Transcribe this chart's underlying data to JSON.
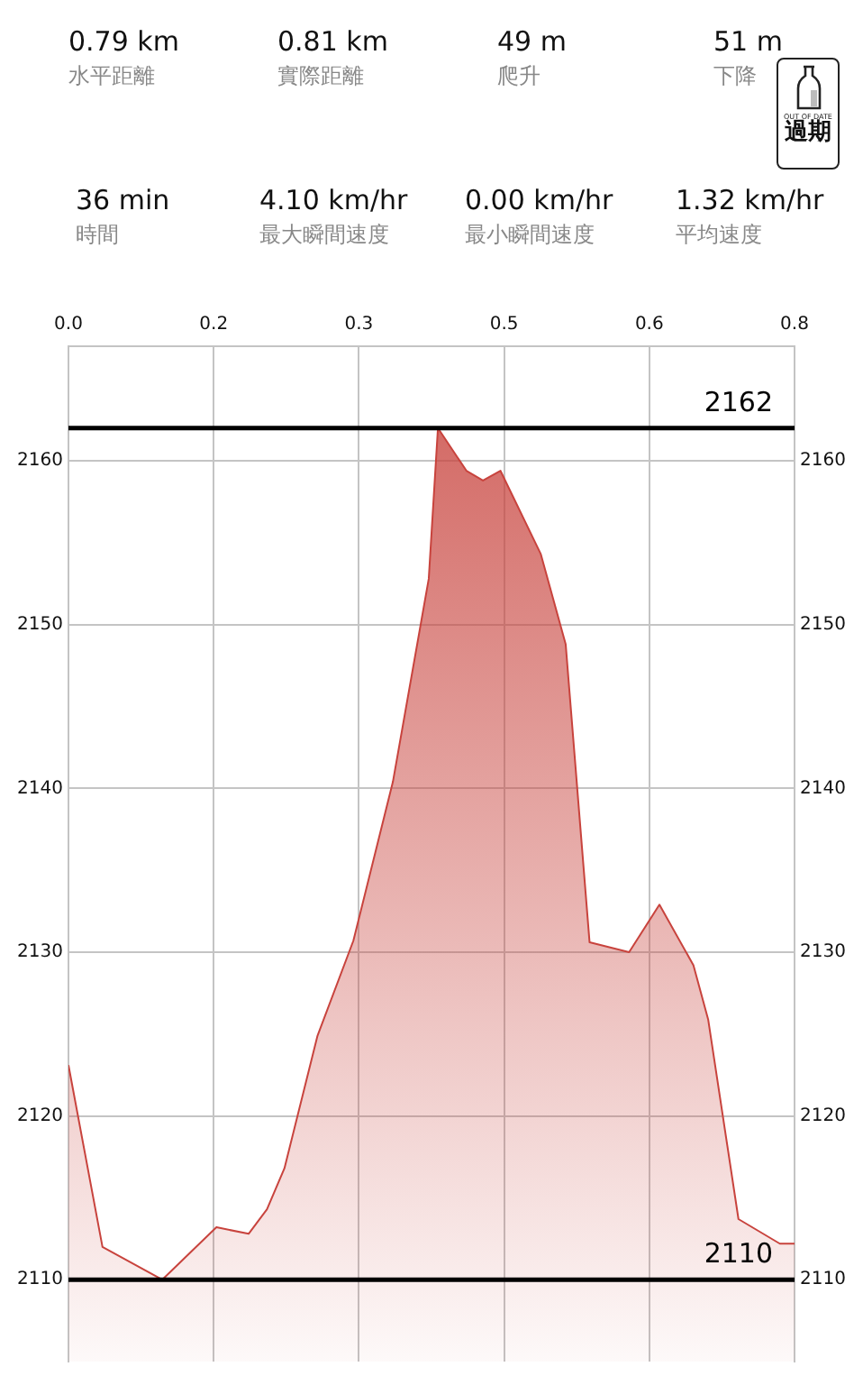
{
  "chart_data": {
    "type": "area",
    "annotations": [
      "0.79 km",
      "水平距離",
      "0.81 km",
      "實際距離",
      "49 m",
      "爬升",
      "51 m",
      "下降",
      "36 min",
      "時間",
      "4.10 km/hr",
      "最大瞬間速度",
      "0.00 km/hr",
      "最小瞬間速度",
      "1.32 km/hr",
      "平均速度",
      "OUT OF DATE",
      "過期"
    ],
    "x": [
      0,
      0.037,
      0.102,
      0.161,
      0.196,
      0.216,
      0.235,
      0.271,
      0.31,
      0.353,
      0.392,
      0.402,
      0.433,
      0.451,
      0.47,
      0.514,
      0.541,
      0.567,
      0.61,
      0.643,
      0.68,
      0.696,
      0.729,
      0.774,
      0.79
    ],
    "series": [
      {
        "color": "#c8433d",
        "values": [
          2123.1,
          2112,
          2110,
          2113.2,
          2112.8,
          2114.3,
          2116.8,
          2124.9,
          2130.7,
          2140.4,
          2152.8,
          2162,
          2159.4,
          2158.8,
          2159.4,
          2154.3,
          2148.8,
          2130.6,
          2130,
          2132.9,
          2129.2,
          2125.9,
          2113.7,
          2112.2,
          2112.2
        ]
      }
    ],
    "xlim": [
      0,
      0.79
    ],
    "xticks": [
      {
        "value": 0,
        "label": "0.0"
      },
      {
        "value": 0.158,
        "label": "0.2"
      },
      {
        "value": 0.316,
        "label": "0.3"
      },
      {
        "value": 0.474,
        "label": "0.5"
      },
      {
        "value": 0.632,
        "label": "0.6"
      },
      {
        "value": 0.79,
        "label": "0.8"
      }
    ],
    "ylim": [
      2105,
      2167
    ],
    "yticks": [
      2110,
      2120,
      2130,
      2140,
      2150,
      2160
    ],
    "y2lim": [
      2105,
      2167
    ],
    "y2ticks": [
      2110,
      2120,
      2130,
      2140,
      2150,
      2160
    ],
    "ref_lines": [
      {
        "axis": "y",
        "value": 2162,
        "label": "2162",
        "color": "#000000"
      },
      {
        "axis": "y",
        "value": 2110,
        "label": "2110",
        "color": "#000000"
      }
    ],
    "grid": true,
    "marker": "none",
    "line_style": "solid"
  }
}
